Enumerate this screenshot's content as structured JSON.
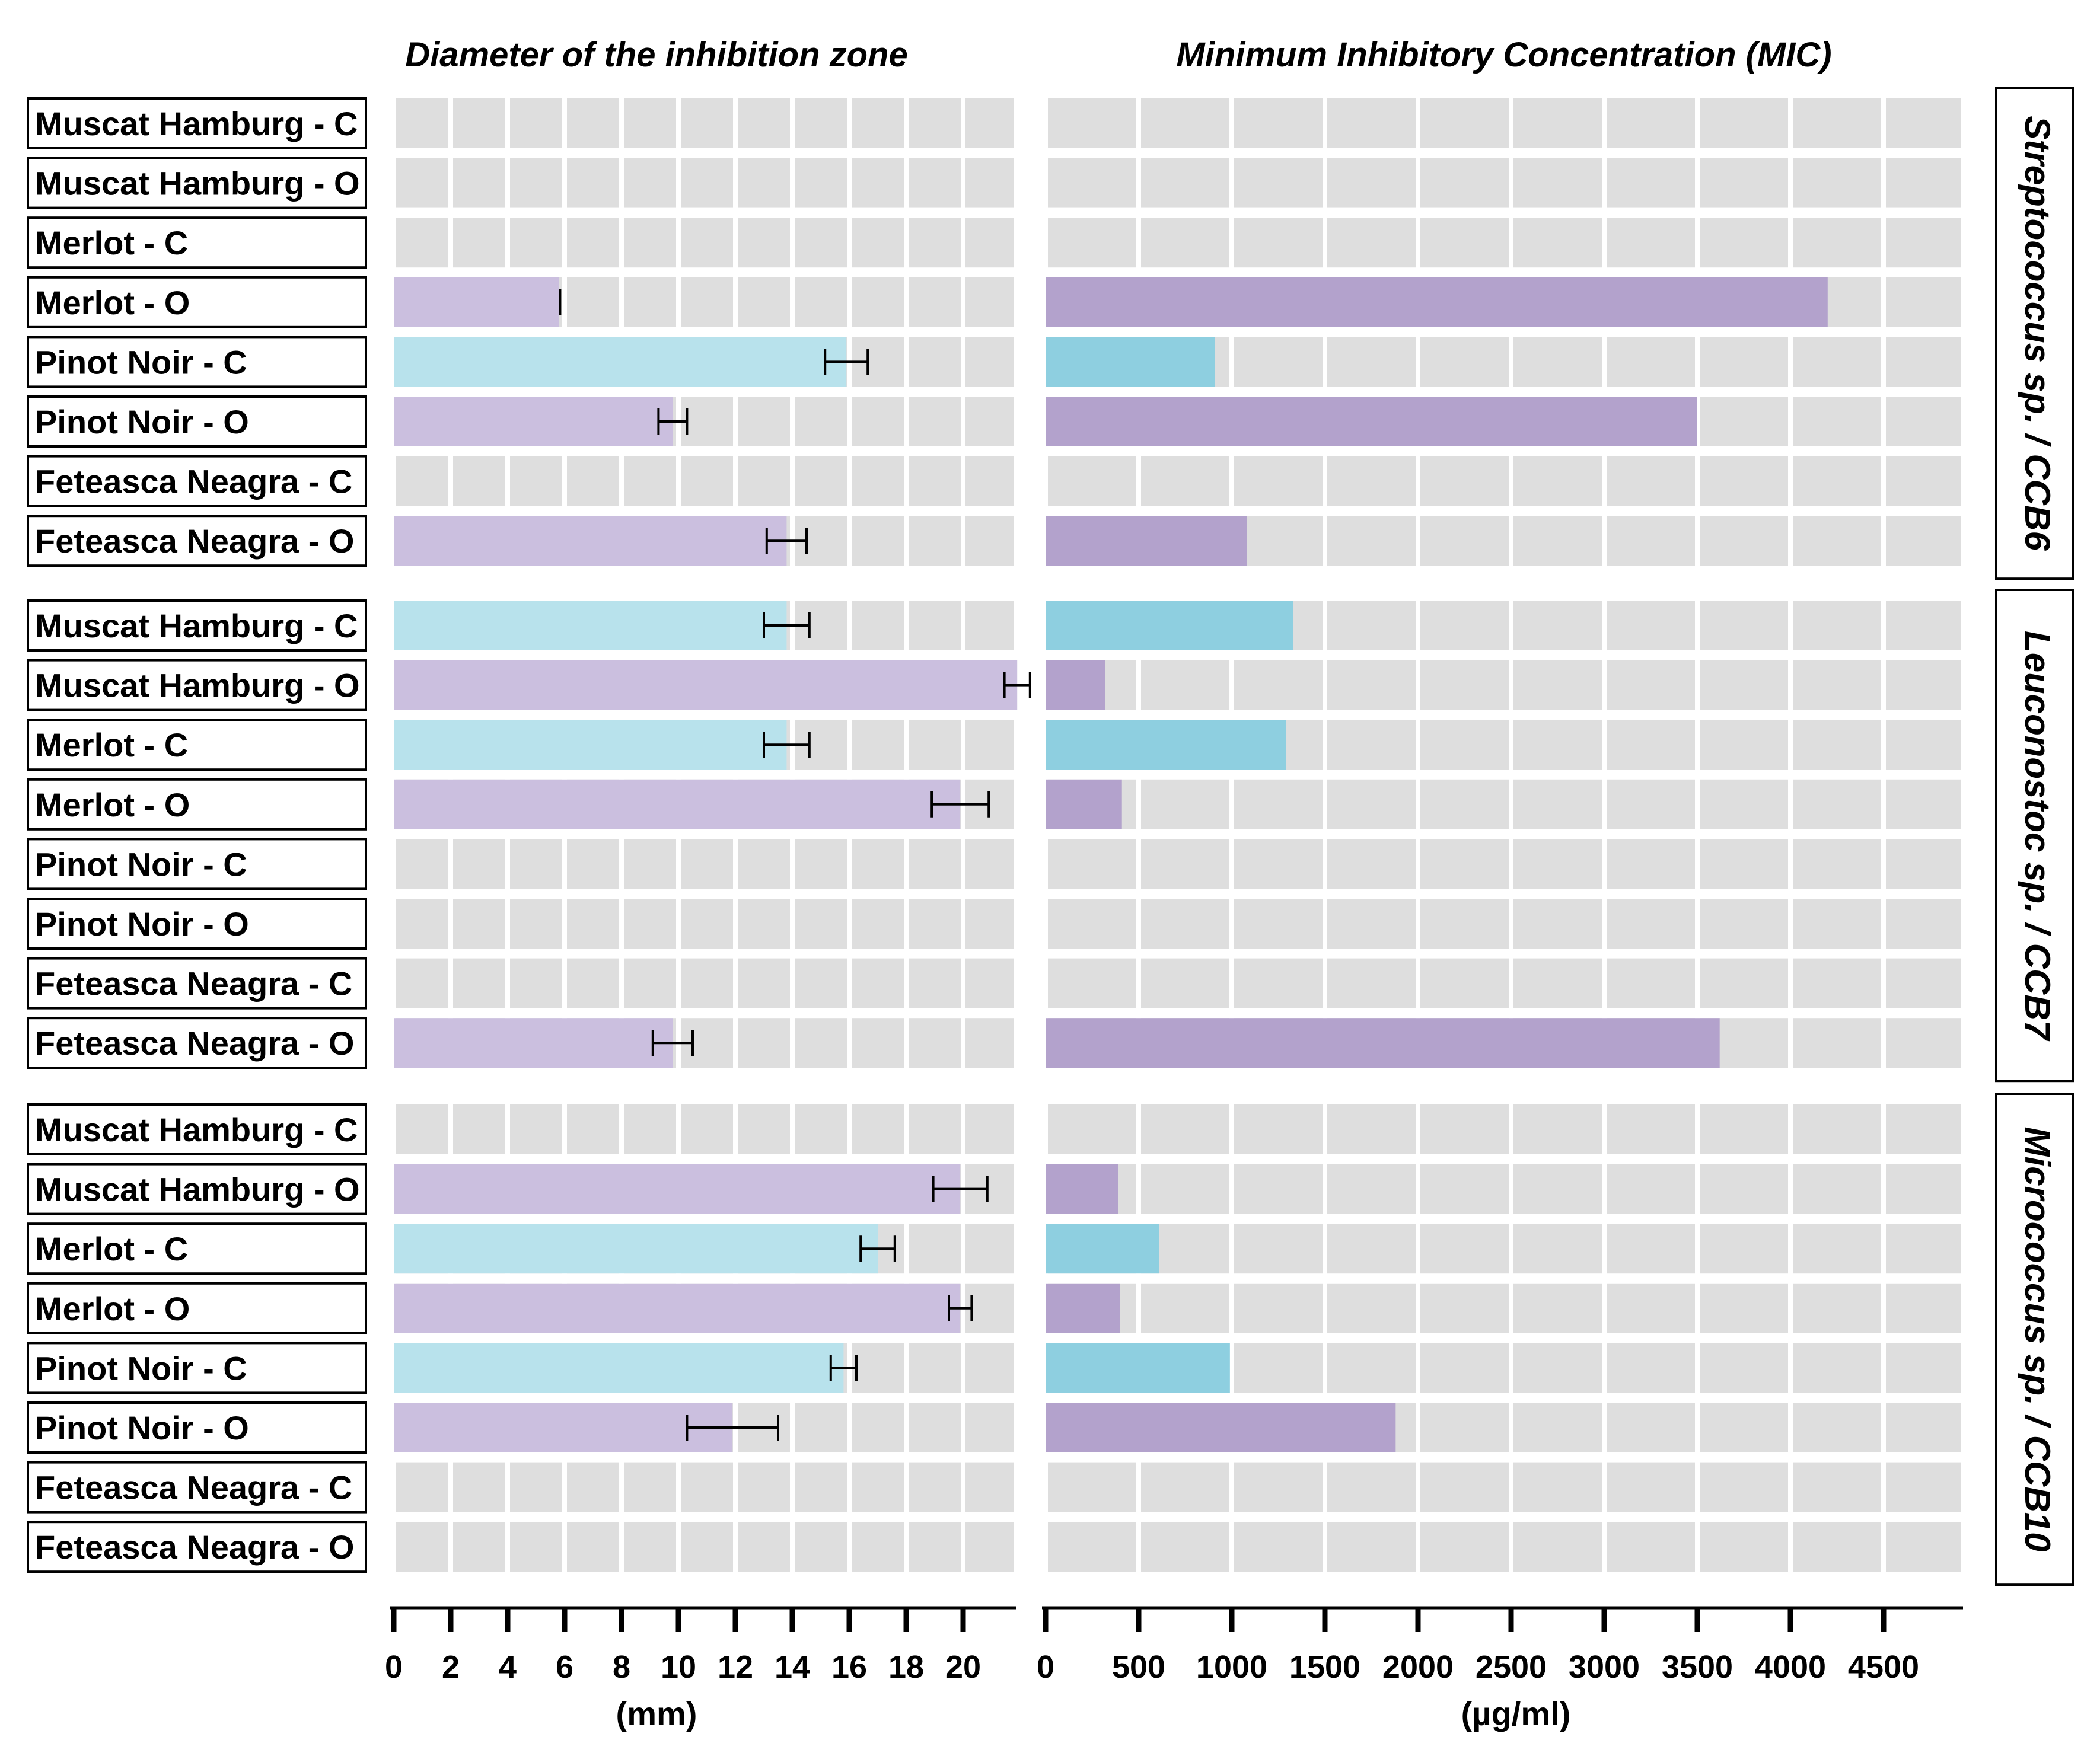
{
  "colors": {
    "cell_bg": "#dedede",
    "conventional_left": "#b8e2ec",
    "organic_left": "#cbbfdf",
    "conventional_right": "#8ecfe0",
    "organic_right": "#b3a2cc",
    "text": "#000000"
  },
  "chart_data": [
    {
      "type": "bar",
      "orientation": "horizontal",
      "title": "Diameter of the inhibition zone",
      "xlabel": "(mm)",
      "xlim": [
        0,
        22
      ],
      "xticks": [
        0,
        2,
        4,
        6,
        8,
        10,
        12,
        14,
        16,
        18,
        20
      ],
      "groups": [
        {
          "name": "Streptococcus sp. / CCB6",
          "rows": [
            {
              "label": "Muscat Hamburg - C",
              "value": null,
              "error": null
            },
            {
              "label": "Muscat Hamburg - O",
              "value": null,
              "error": null
            },
            {
              "label": "Merlot - C",
              "value": null,
              "error": null
            },
            {
              "label": "Merlot - O",
              "value": 5.8,
              "error": 0
            },
            {
              "label": "Pinot Noir - C",
              "value": 15.9,
              "error": 0.75
            },
            {
              "label": "Pinot Noir - O",
              "value": 9.8,
              "error": 0.5
            },
            {
              "label": "Feteasca Neagra - C",
              "value": null,
              "error": null
            },
            {
              "label": "Feteasca Neagra - O",
              "value": 13.8,
              "error": 0.7
            }
          ]
        },
        {
          "name": "Leuconostoc sp. / CCB7",
          "rows": [
            {
              "label": "Muscat Hamburg - C",
              "value": 13.8,
              "error": 0.8
            },
            {
              "label": "Muscat Hamburg - O",
              "value": 21.9,
              "error": 0.45
            },
            {
              "label": "Merlot - C",
              "value": 13.8,
              "error": 0.8
            },
            {
              "label": "Merlot - O",
              "value": 19.9,
              "error": 1.0
            },
            {
              "label": "Pinot Noir - C",
              "value": null,
              "error": null
            },
            {
              "label": "Pinot Noir - O",
              "value": null,
              "error": null
            },
            {
              "label": "Feteasca Neagra - C",
              "value": null,
              "error": null
            },
            {
              "label": "Feteasca Neagra - O",
              "value": 9.8,
              "error": 0.7
            }
          ]
        },
        {
          "name": "Micrococcus sp. / CCB10",
          "rows": [
            {
              "label": "Muscat Hamburg - C",
              "value": null,
              "error": null
            },
            {
              "label": "Muscat Hamburg - O",
              "value": 19.9,
              "error": 0.95
            },
            {
              "label": "Merlot - C",
              "value": 17.0,
              "error": 0.6
            },
            {
              "label": "Merlot - O",
              "value": 19.9,
              "error": 0.4
            },
            {
              "label": "Pinot Noir - C",
              "value": 15.8,
              "error": 0.45
            },
            {
              "label": "Pinot Noir - O",
              "value": 11.9,
              "error": 1.6
            }
          ]
        }
      ]
    },
    {
      "type": "bar",
      "orientation": "horizontal",
      "title": "Minimum Inhibitory Concentration (MIC)",
      "xlabel": "(µg/ml)",
      "xlim": [
        0,
        5000
      ],
      "xticks": [
        0,
        500,
        1000,
        1500,
        2000,
        2500,
        3000,
        3500,
        4000,
        4500
      ],
      "groups": [
        {
          "name": "Streptococcus sp. / CCB6",
          "rows": [
            {
              "label": "Muscat Hamburg - C",
              "value": null
            },
            {
              "label": "Muscat Hamburg - O",
              "value": null
            },
            {
              "label": "Merlot - C",
              "value": null
            },
            {
              "label": "Merlot - O",
              "value": 4200
            },
            {
              "label": "Pinot Noir - C",
              "value": 910
            },
            {
              "label": "Pinot Noir - O",
              "value": 3500
            },
            {
              "label": "Feteasca Neagra - C",
              "value": null
            },
            {
              "label": "Feteasca Neagra - O",
              "value": 1080
            }
          ]
        },
        {
          "name": "Leuconostoc sp. / CCB7",
          "rows": [
            {
              "label": "Muscat Hamburg - C",
              "value": 1330
            },
            {
              "label": "Muscat Hamburg - O",
              "value": 320
            },
            {
              "label": "Merlot - C",
              "value": 1290
            },
            {
              "label": "Merlot - O",
              "value": 410
            },
            {
              "label": "Pinot Noir - C",
              "value": null
            },
            {
              "label": "Pinot Noir - O",
              "value": null
            },
            {
              "label": "Feteasca Neagra - C",
              "value": null
            },
            {
              "label": "Feteasca Neagra - O",
              "value": 3620
            }
          ]
        },
        {
          "name": "Micrococcus sp. / CCB10",
          "rows": [
            {
              "label": "Muscat Hamburg - C",
              "value": null
            },
            {
              "label": "Muscat Hamburg - O",
              "value": 390
            },
            {
              "label": "Merlot - C",
              "value": 610
            },
            {
              "label": "Merlot - O",
              "value": 400
            },
            {
              "label": "Pinot Noir - C",
              "value": 990
            },
            {
              "label": "Pinot Noir - O",
              "value": 1880
            },
            {
              "label": "Feteasca Neagra - C",
              "value": null
            },
            {
              "label": "Feteasca Neagra - O",
              "value": null
            }
          ]
        }
      ]
    }
  ]
}
